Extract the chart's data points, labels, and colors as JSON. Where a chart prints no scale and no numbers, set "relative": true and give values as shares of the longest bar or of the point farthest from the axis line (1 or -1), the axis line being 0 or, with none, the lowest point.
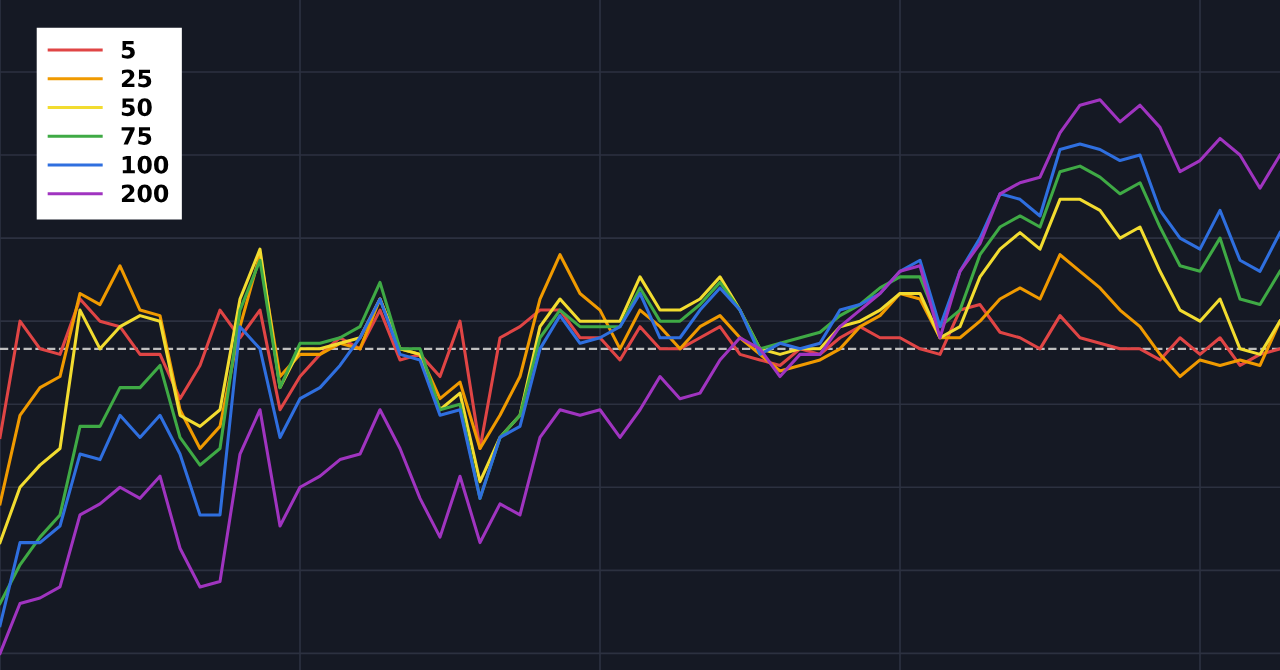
{
  "chart_data": {
    "type": "line",
    "relative": true,
    "grid": true,
    "legend": "top left",
    "marker": "none",
    "line_style": "solid",
    "categories": [
      null,
      null,
      null,
      null,
      null,
      null,
      null,
      null,
      null,
      null,
      null,
      null,
      null,
      null,
      null,
      null,
      null,
      null,
      null,
      null,
      null,
      null,
      null,
      null,
      null,
      null,
      null,
      null,
      null,
      null,
      null,
      null,
      null,
      null,
      null,
      null,
      null,
      null,
      null,
      null,
      null,
      null,
      null,
      null,
      null,
      null,
      null,
      null,
      null,
      null,
      null,
      null,
      null,
      null,
      null,
      null,
      null,
      null,
      null,
      null,
      null,
      null,
      null,
      null,
      null
    ],
    "ref_lines": [
      {
        "axis": "y",
        "value": 0.55,
        "color": "#bfbfbf",
        "line_style": "dashed"
      }
    ],
    "series": [
      {
        "name": "5",
        "color": "#e04545",
        "values": [
          0.39,
          0.6,
          0.55,
          0.54,
          0.64,
          0.6,
          0.59,
          0.54,
          0.54,
          0.46,
          0.52,
          0.62,
          0.57,
          0.62,
          0.44,
          0.5,
          0.54,
          0.57,
          0.55,
          0.62,
          0.53,
          0.54,
          0.5,
          0.6,
          0.37,
          0.57,
          0.59,
          0.62,
          0.62,
          0.57,
          0.57,
          0.53,
          0.59,
          0.55,
          0.55,
          0.57,
          0.59,
          0.54,
          0.53,
          0.52,
          0.55,
          0.54,
          0.57,
          0.59,
          0.57,
          0.57,
          0.55,
          0.54,
          0.62,
          0.63,
          0.58,
          0.57,
          0.55,
          0.61,
          0.57,
          0.56,
          0.55,
          0.55,
          0.53,
          0.57,
          0.54,
          0.57,
          0.52,
          0.54,
          0.55
        ]
      },
      {
        "name": "25",
        "color": "#f09a00",
        "values": [
          0.27,
          0.43,
          0.48,
          0.5,
          0.65,
          0.63,
          0.7,
          0.62,
          0.61,
          0.44,
          0.37,
          0.41,
          0.59,
          0.72,
          0.5,
          0.54,
          0.54,
          0.56,
          0.55,
          0.64,
          0.55,
          0.54,
          0.46,
          0.49,
          0.37,
          0.43,
          0.5,
          0.64,
          0.72,
          0.65,
          0.62,
          0.55,
          0.62,
          0.59,
          0.55,
          0.59,
          0.61,
          0.57,
          0.54,
          0.51,
          0.52,
          0.53,
          0.55,
          0.59,
          0.61,
          0.65,
          0.64,
          0.57,
          0.57,
          0.6,
          0.64,
          0.66,
          0.64,
          0.72,
          0.69,
          0.66,
          0.62,
          0.59,
          0.54,
          0.5,
          0.53,
          0.52,
          0.53,
          0.52,
          0.6
        ]
      },
      {
        "name": "50",
        "color": "#f2dc30",
        "values": [
          0.2,
          0.3,
          0.34,
          0.37,
          0.62,
          0.55,
          0.59,
          0.61,
          0.6,
          0.43,
          0.41,
          0.44,
          0.64,
          0.73,
          0.48,
          0.55,
          0.55,
          0.56,
          0.57,
          0.64,
          0.55,
          0.54,
          0.44,
          0.47,
          0.31,
          0.39,
          0.43,
          0.59,
          0.64,
          0.6,
          0.6,
          0.6,
          0.68,
          0.62,
          0.62,
          0.64,
          0.68,
          0.62,
          0.55,
          0.54,
          0.55,
          0.55,
          0.59,
          0.6,
          0.62,
          0.65,
          0.65,
          0.57,
          0.59,
          0.68,
          0.73,
          0.76,
          0.73,
          0.82,
          0.82,
          0.8,
          0.75,
          0.77,
          0.69,
          0.62,
          0.6,
          0.64,
          0.55,
          0.54,
          0.6
        ]
      },
      {
        "name": "75",
        "color": "#3faa45",
        "values": [
          0.09,
          0.16,
          0.21,
          0.25,
          0.41,
          0.41,
          0.48,
          0.48,
          0.52,
          0.39,
          0.34,
          0.37,
          0.62,
          0.71,
          0.48,
          0.56,
          0.56,
          0.57,
          0.59,
          0.67,
          0.55,
          0.55,
          0.44,
          0.45,
          0.28,
          0.39,
          0.43,
          0.57,
          0.62,
          0.59,
          0.59,
          0.59,
          0.66,
          0.6,
          0.6,
          0.63,
          0.67,
          0.62,
          0.55,
          0.56,
          0.57,
          0.58,
          0.61,
          0.63,
          0.66,
          0.68,
          0.68,
          0.59,
          0.62,
          0.72,
          0.77,
          0.79,
          0.77,
          0.87,
          0.88,
          0.86,
          0.83,
          0.85,
          0.77,
          0.7,
          0.69,
          0.75,
          0.64,
          0.63,
          0.69
        ]
      },
      {
        "name": "100",
        "color": "#2f6fdf",
        "values": [
          0.05,
          0.2,
          0.2,
          0.23,
          0.36,
          0.35,
          0.43,
          0.39,
          0.43,
          0.36,
          0.25,
          0.25,
          0.59,
          0.55,
          0.39,
          0.46,
          0.48,
          0.52,
          0.57,
          0.64,
          0.54,
          0.53,
          0.43,
          0.44,
          0.28,
          0.39,
          0.41,
          0.55,
          0.61,
          0.56,
          0.57,
          0.59,
          0.65,
          0.57,
          0.57,
          0.62,
          0.66,
          0.62,
          0.54,
          0.56,
          0.55,
          0.56,
          0.62,
          0.63,
          0.65,
          0.69,
          0.71,
          0.59,
          0.69,
          0.75,
          0.83,
          0.82,
          0.79,
          0.91,
          0.92,
          0.91,
          0.89,
          0.9,
          0.8,
          0.75,
          0.73,
          0.8,
          0.71,
          0.69,
          0.76
        ]
      },
      {
        "name": "200",
        "color": "#a034c0",
        "values": [
          0,
          0.09,
          0.1,
          0.12,
          0.25,
          0.27,
          0.3,
          0.28,
          0.32,
          0.19,
          0.12,
          0.13,
          0.36,
          0.44,
          0.23,
          0.3,
          0.32,
          0.35,
          0.36,
          0.44,
          0.37,
          0.28,
          0.21,
          0.32,
          0.2,
          0.27,
          0.25,
          0.39,
          0.44,
          0.43,
          0.44,
          0.39,
          0.44,
          0.5,
          0.46,
          0.47,
          0.53,
          0.57,
          0.55,
          0.5,
          0.54,
          0.54,
          0.59,
          0.62,
          0.65,
          0.69,
          0.7,
          0.57,
          0.69,
          0.74,
          0.83,
          0.85,
          0.86,
          0.94,
          0.99,
          1.0,
          0.96,
          0.99,
          0.95,
          0.87,
          0.89,
          0.93,
          0.9,
          0.84,
          0.9
        ]
      }
    ]
  }
}
